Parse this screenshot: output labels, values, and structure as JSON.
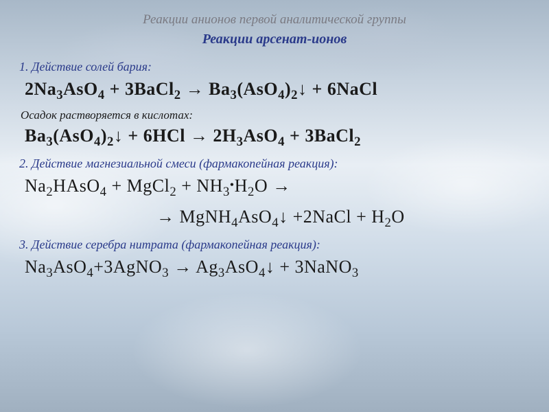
{
  "title_main": "Реакции анионов первой аналитической группы",
  "title_sub": "Реакции арсенат-ионов",
  "sections": [
    {
      "heading": "1. Действие солей бария:",
      "formula_main": "2Na<sub>3</sub>AsO<sub>4</sub> + 3BaCl<sub>2</sub> <span class='arrow'>→</span> Ba<sub>3</sub>(AsO<sub>4</sub>)<sub>2</sub>↓ + 6NaCl",
      "note": "Осадок растворяется в кислотах:",
      "formula_note": "Ba<sub>3</sub>(AsO<sub>4</sub>)<sub>2</sub>↓ + 6HCl <span class='arrow'>→</span> 2H<sub>3</sub>AsO<sub>4</sub> + 3BaCl<sub>2</sub>"
    },
    {
      "heading": "2. Действие магнезиальной смеси (фармакопейная реакция):",
      "formula_line1": "Na<sub>2</sub>HAsO<sub>4</sub> + MgCl<sub>2</sub> + NH<sub>3</sub><span class='dot'>•</span>H<sub>2</sub>O <span class='arrow'>→</span>",
      "formula_line2": "<span class='arrow'>→</span> MgNH<sub>4</sub>AsO<sub>4</sub>↓ +2NaCl + H<sub>2</sub>O"
    },
    {
      "heading": "3. Действие серебра нитрата (фармакопейная реакция):",
      "formula_main": "Na<sub>3</sub>AsO<sub>4</sub>+3AgNO<sub>3</sub> <span class='arrow'>→</span> Ag<sub>3</sub>AsO<sub>4</sub>↓ + 3NaNO<sub>3</sub>"
    }
  ],
  "colors": {
    "title_gray": "#7a7a82",
    "heading_blue": "#2a3a8a",
    "text": "#1a1a1a"
  },
  "typography": {
    "title_fontsize_pt": 14,
    "subtitle_fontsize_pt": 15,
    "heading_fontsize_pt": 13,
    "formula_fontsize_pt": 19,
    "font_family": "Times New Roman / Georgia"
  }
}
